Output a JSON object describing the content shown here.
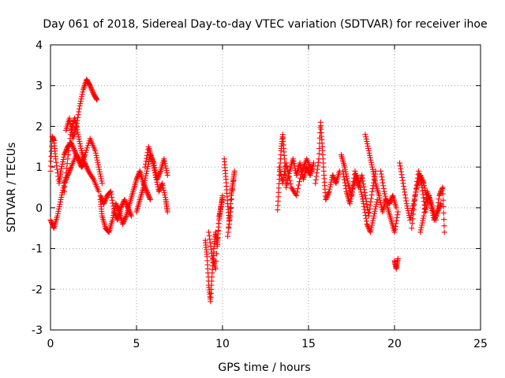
{
  "chart_data": {
    "type": "scatter",
    "title": "Day 061 of 2018, Sidereal Day-to-day VTEC variation (SDTVAR) for receiver ihoe",
    "xlabel": "GPS time / hours",
    "ylabel": "SDTVAR / TECUs",
    "xlim": [
      0,
      25
    ],
    "ylim": [
      -3,
      4
    ],
    "xticks": [
      "0",
      "5",
      "10",
      "15",
      "20",
      "25"
    ],
    "yticks": [
      "-3",
      "-2",
      "-1",
      "0",
      "1",
      "2",
      "3",
      "4"
    ],
    "grid": true,
    "marker": "+",
    "series": [
      {
        "name": "SDTVAR",
        "color": "#ff0000",
        "segments": [
          [
            [
              0.0,
              0.9
            ],
            [
              0.1,
              1.75
            ],
            [
              0.2,
              1.65
            ],
            [
              0.3,
              1.2
            ],
            [
              0.5,
              0.6
            ],
            [
              0.6,
              0.9
            ],
            [
              0.8,
              1.3
            ],
            [
              1.0,
              1.5
            ],
            [
              1.2,
              1.6
            ],
            [
              1.4,
              1.4
            ],
            [
              1.6,
              1.2
            ],
            [
              1.8,
              1.0
            ],
            [
              2.0,
              1.1
            ],
            [
              2.2,
              0.9
            ],
            [
              2.5,
              0.7
            ],
            [
              2.8,
              0.4
            ]
          ],
          [
            [
              0.0,
              -0.3
            ],
            [
              0.2,
              -0.5
            ],
            [
              0.4,
              -0.2
            ],
            [
              0.6,
              0.2
            ],
            [
              0.8,
              0.6
            ],
            [
              1.0,
              0.8
            ],
            [
              1.2,
              1.0
            ],
            [
              1.5,
              1.3
            ],
            [
              1.8,
              1.1
            ],
            [
              2.0,
              1.3
            ],
            [
              2.3,
              1.7
            ],
            [
              2.6,
              1.4
            ],
            [
              2.8,
              1.0
            ],
            [
              3.0,
              0.6
            ]
          ],
          [
            [
              0.9,
              1.9
            ],
            [
              1.1,
              2.2
            ],
            [
              1.3,
              1.7
            ],
            [
              1.5,
              2.0
            ],
            [
              1.7,
              2.5
            ],
            [
              1.9,
              2.9
            ],
            [
              2.1,
              3.15
            ],
            [
              2.3,
              3.0
            ],
            [
              2.5,
              2.8
            ],
            [
              2.7,
              2.65
            ]
          ],
          [
            [
              0.8,
              0.4
            ],
            [
              1.0,
              1.2
            ],
            [
              1.2,
              1.9
            ],
            [
              1.4,
              2.2
            ],
            [
              1.6,
              1.8
            ],
            [
              1.8,
              1.4
            ],
            [
              2.0,
              1.1
            ]
          ],
          [
            [
              2.9,
              0.2
            ],
            [
              3.0,
              -0.2
            ],
            [
              3.2,
              -0.5
            ],
            [
              3.4,
              -0.6
            ],
            [
              3.6,
              -0.3
            ],
            [
              3.8,
              0.1
            ],
            [
              4.0,
              -0.1
            ],
            [
              4.2,
              -0.4
            ],
            [
              4.4,
              -0.2
            ],
            [
              4.6,
              0.1
            ],
            [
              4.8,
              0.4
            ],
            [
              5.0,
              0.7
            ],
            [
              5.2,
              0.9
            ],
            [
              5.4,
              0.6
            ],
            [
              5.6,
              0.4
            ],
            [
              5.8,
              0.2
            ]
          ],
          [
            [
              2.9,
              0.3
            ],
            [
              3.1,
              0.1
            ],
            [
              3.3,
              0.3
            ],
            [
              3.5,
              0.4
            ],
            [
              3.7,
              -0.1
            ],
            [
              3.9,
              -0.3
            ],
            [
              4.1,
              0.0
            ],
            [
              4.3,
              0.2
            ],
            [
              4.5,
              0.0
            ],
            [
              4.7,
              -0.2
            ]
          ],
          [
            [
              5.0,
              -0.1
            ],
            [
              5.2,
              0.2
            ],
            [
              5.4,
              0.5
            ],
            [
              5.6,
              0.9
            ],
            [
              5.8,
              1.3
            ],
            [
              6.0,
              1.1
            ],
            [
              6.2,
              0.7
            ],
            [
              6.4,
              0.9
            ],
            [
              6.6,
              1.2
            ],
            [
              6.8,
              0.8
            ]
          ],
          [
            [
              5.5,
              1.0
            ],
            [
              5.7,
              1.5
            ],
            [
              5.9,
              1.2
            ],
            [
              6.1,
              0.8
            ],
            [
              6.3,
              0.4
            ],
            [
              6.5,
              0.6
            ],
            [
              6.7,
              0.2
            ],
            [
              6.8,
              -0.1
            ]
          ],
          [
            [
              9.0,
              -0.8
            ],
            [
              9.1,
              -1.2
            ],
            [
              9.2,
              -1.9
            ],
            [
              9.3,
              -2.3
            ],
            [
              9.4,
              -1.6
            ],
            [
              9.5,
              -1.0
            ],
            [
              9.6,
              -0.6
            ],
            [
              9.7,
              -0.9
            ],
            [
              9.8,
              -0.3
            ],
            [
              9.9,
              0.0
            ],
            [
              10.0,
              0.3
            ]
          ],
          [
            [
              9.2,
              -0.6
            ],
            [
              9.4,
              -1.2
            ],
            [
              9.6,
              -1.5
            ],
            [
              9.8,
              -0.2
            ],
            [
              10.0,
              0.2
            ]
          ],
          [
            [
              10.1,
              1.2
            ],
            [
              10.2,
              0.7
            ],
            [
              10.3,
              0.1
            ],
            [
              10.4,
              -0.4
            ],
            [
              10.5,
              0.3
            ],
            [
              10.6,
              0.6
            ],
            [
              10.7,
              0.9
            ],
            [
              10.3,
              -0.7
            ],
            [
              10.5,
              0.0
            ]
          ],
          [
            [
              13.2,
              -0.05
            ],
            [
              13.3,
              0.7
            ],
            [
              13.4,
              1.4
            ],
            [
              13.5,
              1.8
            ],
            [
              13.6,
              1.2
            ],
            [
              13.7,
              0.5
            ],
            [
              13.9,
              0.9
            ],
            [
              14.1,
              1.2
            ],
            [
              14.3,
              0.8
            ],
            [
              14.5,
              1.1
            ],
            [
              14.7,
              0.7
            ],
            [
              14.9,
              1.0
            ],
            [
              15.1,
              0.8
            ],
            [
              15.3,
              1.1
            ]
          ],
          [
            [
              13.3,
              1.0
            ],
            [
              13.5,
              0.6
            ],
            [
              13.7,
              1.1
            ],
            [
              14.0,
              0.5
            ],
            [
              14.3,
              0.3
            ],
            [
              14.6,
              0.9
            ],
            [
              14.9,
              1.2
            ],
            [
              15.2,
              0.9
            ]
          ],
          [
            [
              15.4,
              0.6
            ],
            [
              15.6,
              1.2
            ],
            [
              15.7,
              2.1
            ],
            [
              15.8,
              1.5
            ],
            [
              15.9,
              0.8
            ],
            [
              16.0,
              0.2
            ],
            [
              16.2,
              0.4
            ],
            [
              16.4,
              0.8
            ],
            [
              16.6,
              0.6
            ],
            [
              16.8,
              0.9
            ]
          ],
          [
            [
              16.9,
              1.3
            ],
            [
              17.1,
              1.0
            ],
            [
              17.3,
              0.6
            ],
            [
              17.5,
              0.3
            ],
            [
              17.7,
              0.9
            ],
            [
              17.9,
              0.5
            ],
            [
              18.1,
              0.8
            ],
            [
              18.3,
              0.3
            ],
            [
              18.5,
              -0.2
            ],
            [
              18.7,
              0.4
            ],
            [
              18.9,
              0.9
            ]
          ],
          [
            [
              17.0,
              0.9
            ],
            [
              17.2,
              0.4
            ],
            [
              17.4,
              0.1
            ],
            [
              17.6,
              0.5
            ],
            [
              17.8,
              0.8
            ],
            [
              18.0,
              0.5
            ],
            [
              18.2,
              0.1
            ],
            [
              18.4,
              -0.4
            ],
            [
              18.6,
              -0.6
            ],
            [
              18.8,
              -0.2
            ],
            [
              19.0,
              0.2
            ]
          ],
          [
            [
              18.3,
              1.8
            ],
            [
              18.5,
              1.4
            ],
            [
              18.7,
              1.0
            ],
            [
              18.9,
              0.6
            ],
            [
              19.1,
              0.3
            ],
            [
              19.3,
              -0.1
            ],
            [
              19.5,
              0.2
            ],
            [
              19.7,
              0.1
            ],
            [
              19.9,
              0.3
            ],
            [
              20.1,
              0.0
            ]
          ],
          [
            [
              19.2,
              0.9
            ],
            [
              19.4,
              0.4
            ],
            [
              19.6,
              0.0
            ],
            [
              19.8,
              -0.3
            ],
            [
              20.0,
              -0.6
            ],
            [
              20.2,
              -0.1
            ]
          ],
          [
            [
              20.0,
              -1.3
            ],
            [
              20.1,
              -1.5
            ],
            [
              20.2,
              -1.25
            ]
          ],
          [
            [
              20.3,
              1.1
            ],
            [
              20.5,
              0.6
            ],
            [
              20.7,
              0.1
            ],
            [
              20.9,
              -0.3
            ],
            [
              21.1,
              0.1
            ],
            [
              21.3,
              0.5
            ],
            [
              21.5,
              0.8
            ],
            [
              21.7,
              0.6
            ],
            [
              21.9,
              0.2
            ]
          ],
          [
            [
              21.0,
              -0.5
            ],
            [
              21.2,
              0.3
            ],
            [
              21.4,
              0.9
            ],
            [
              21.6,
              0.5
            ],
            [
              21.8,
              -0.1
            ],
            [
              22.0,
              0.3
            ],
            [
              22.2,
              0.0
            ],
            [
              22.4,
              -0.3
            ],
            [
              22.6,
              0.3
            ],
            [
              22.8,
              0.5
            ],
            [
              22.9,
              -0.6
            ]
          ],
          [
            [
              21.5,
              -0.6
            ],
            [
              21.7,
              -0.2
            ],
            [
              21.9,
              0.4
            ],
            [
              22.1,
              0.1
            ],
            [
              22.3,
              -0.3
            ],
            [
              22.5,
              -0.1
            ],
            [
              22.7,
              0.1
            ]
          ]
        ]
      }
    ]
  }
}
